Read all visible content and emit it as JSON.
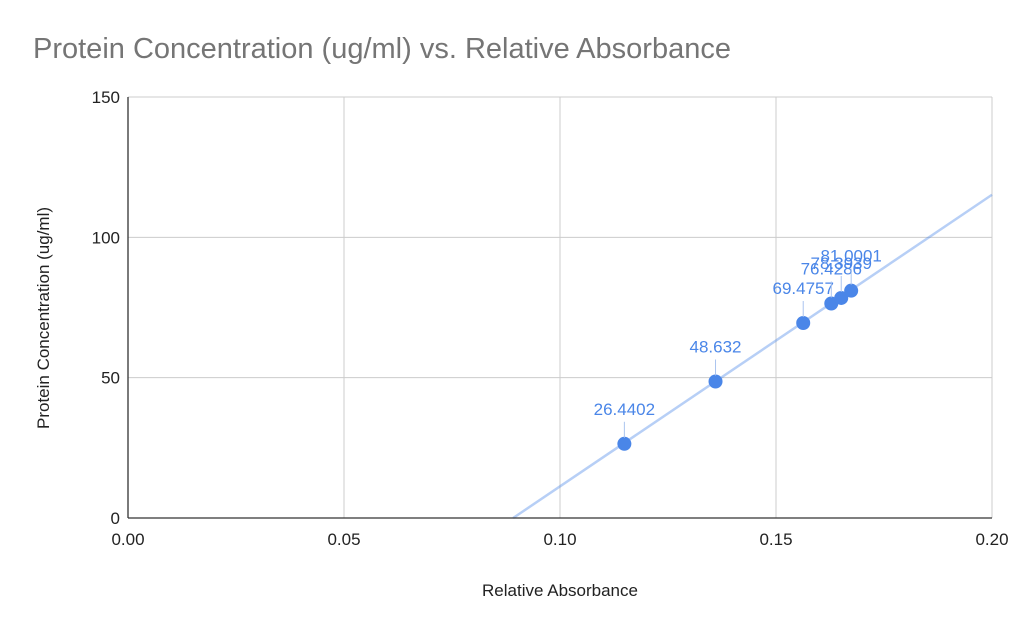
{
  "chart_data": {
    "type": "scatter",
    "title": "Protein Concentration (ug/ml) vs. Relative Absorbance",
    "xlabel": "Relative Absorbance",
    "ylabel": "Protein Concentration (ug/ml)",
    "xlim": [
      0,
      0.2
    ],
    "ylim": [
      0,
      150
    ],
    "x_ticks": [
      "0.00",
      "0.05",
      "0.10",
      "0.15",
      "0.20"
    ],
    "y_ticks": [
      "0",
      "50",
      "100",
      "150"
    ],
    "grid": true,
    "legend": "none",
    "series": [
      {
        "x": [
          0.1149,
          0.136,
          0.1563,
          0.1628,
          0.1651,
          0.1674
        ],
        "y": [
          26.4402,
          48.632,
          69.4757,
          76.4286,
          78.3939,
          81.0001
        ],
        "labels": [
          "26.4402",
          "48.632",
          "69.4757",
          "76.4286",
          "78.3939",
          "81.0001"
        ]
      }
    ],
    "trendline": {
      "type": "linear",
      "slope": 1039.0,
      "intercept": -92.63
    },
    "colors": {
      "point": "#4a86e8",
      "trendline": "#4a86e8",
      "label": "#4a86e8",
      "grid": "#cccccc",
      "title": "#757575"
    }
  }
}
